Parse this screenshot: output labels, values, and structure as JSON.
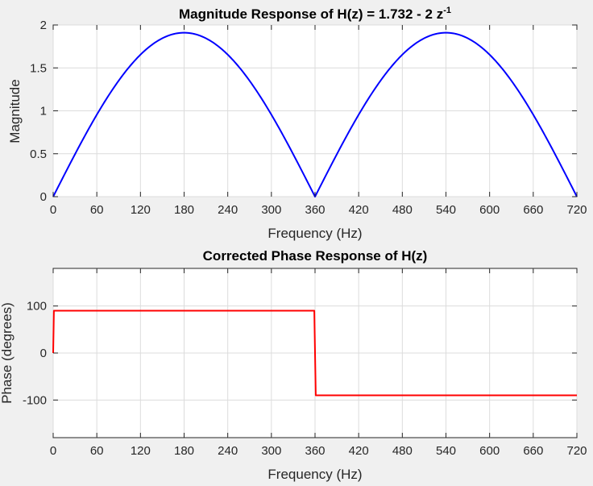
{
  "chart_data": [
    {
      "type": "line",
      "title": "Magnitude Response of H(z) = 1.732 - 2 z",
      "title_superscript": "-1",
      "xlabel": "Frequency (Hz)",
      "ylabel": "Magnitude",
      "xlim": [
        0,
        720
      ],
      "ylim": [
        0,
        2
      ],
      "xticks": [
        0,
        60,
        120,
        180,
        240,
        300,
        360,
        420,
        480,
        540,
        600,
        660,
        720
      ],
      "yticks": [
        0,
        0.5,
        1,
        1.5,
        2
      ],
      "ytick_labels": [
        "0",
        "0.5",
        "1",
        "1.5",
        "2"
      ],
      "grid": true,
      "color": "#0000ff",
      "series": [
        {
          "x": [
            0,
            20,
            40,
            60,
            80,
            100,
            120,
            140,
            160,
            180,
            200,
            220,
            240,
            260,
            280,
            300,
            320,
            340,
            360,
            380,
            400,
            420,
            440,
            460,
            480,
            500,
            520,
            540,
            560,
            580,
            600,
            620,
            640,
            660,
            680,
            700,
            720
          ],
          "values": [
            0,
            0.174,
            0.342,
            0.5,
            0.643,
            0.766,
            0.866,
            0.94,
            0.985,
            1.0,
            0.985,
            0.94,
            0.866,
            0.766,
            0.643,
            0.5,
            0.342,
            0.174,
            0,
            0.174,
            0.342,
            0.5,
            0.643,
            0.766,
            0.866,
            0.94,
            0.985,
            1.0,
            0.985,
            0.94,
            0.866,
            0.766,
            0.643,
            0.5,
            0.342,
            0.174,
            0
          ],
          "scale": 1.91
        }
      ]
    },
    {
      "type": "line",
      "title": "Corrected Phase Response of H(z)",
      "xlabel": "Frequency (Hz)",
      "ylabel": "Phase (degrees)",
      "xlim": [
        0,
        720
      ],
      "ylim": [
        -180,
        180
      ],
      "xticks": [
        0,
        60,
        120,
        180,
        240,
        300,
        360,
        420,
        480,
        540,
        600,
        660,
        720
      ],
      "yticks": [
        -100,
        0,
        100
      ],
      "ytick_labels": [
        "-100",
        "0",
        "100"
      ],
      "grid": true,
      "color": "#ff0000",
      "series": [
        {
          "x": [
            0,
            1,
            359,
            361,
            720
          ],
          "values": [
            0,
            90,
            90,
            -90,
            -90
          ],
          "scale": 1
        }
      ]
    }
  ]
}
